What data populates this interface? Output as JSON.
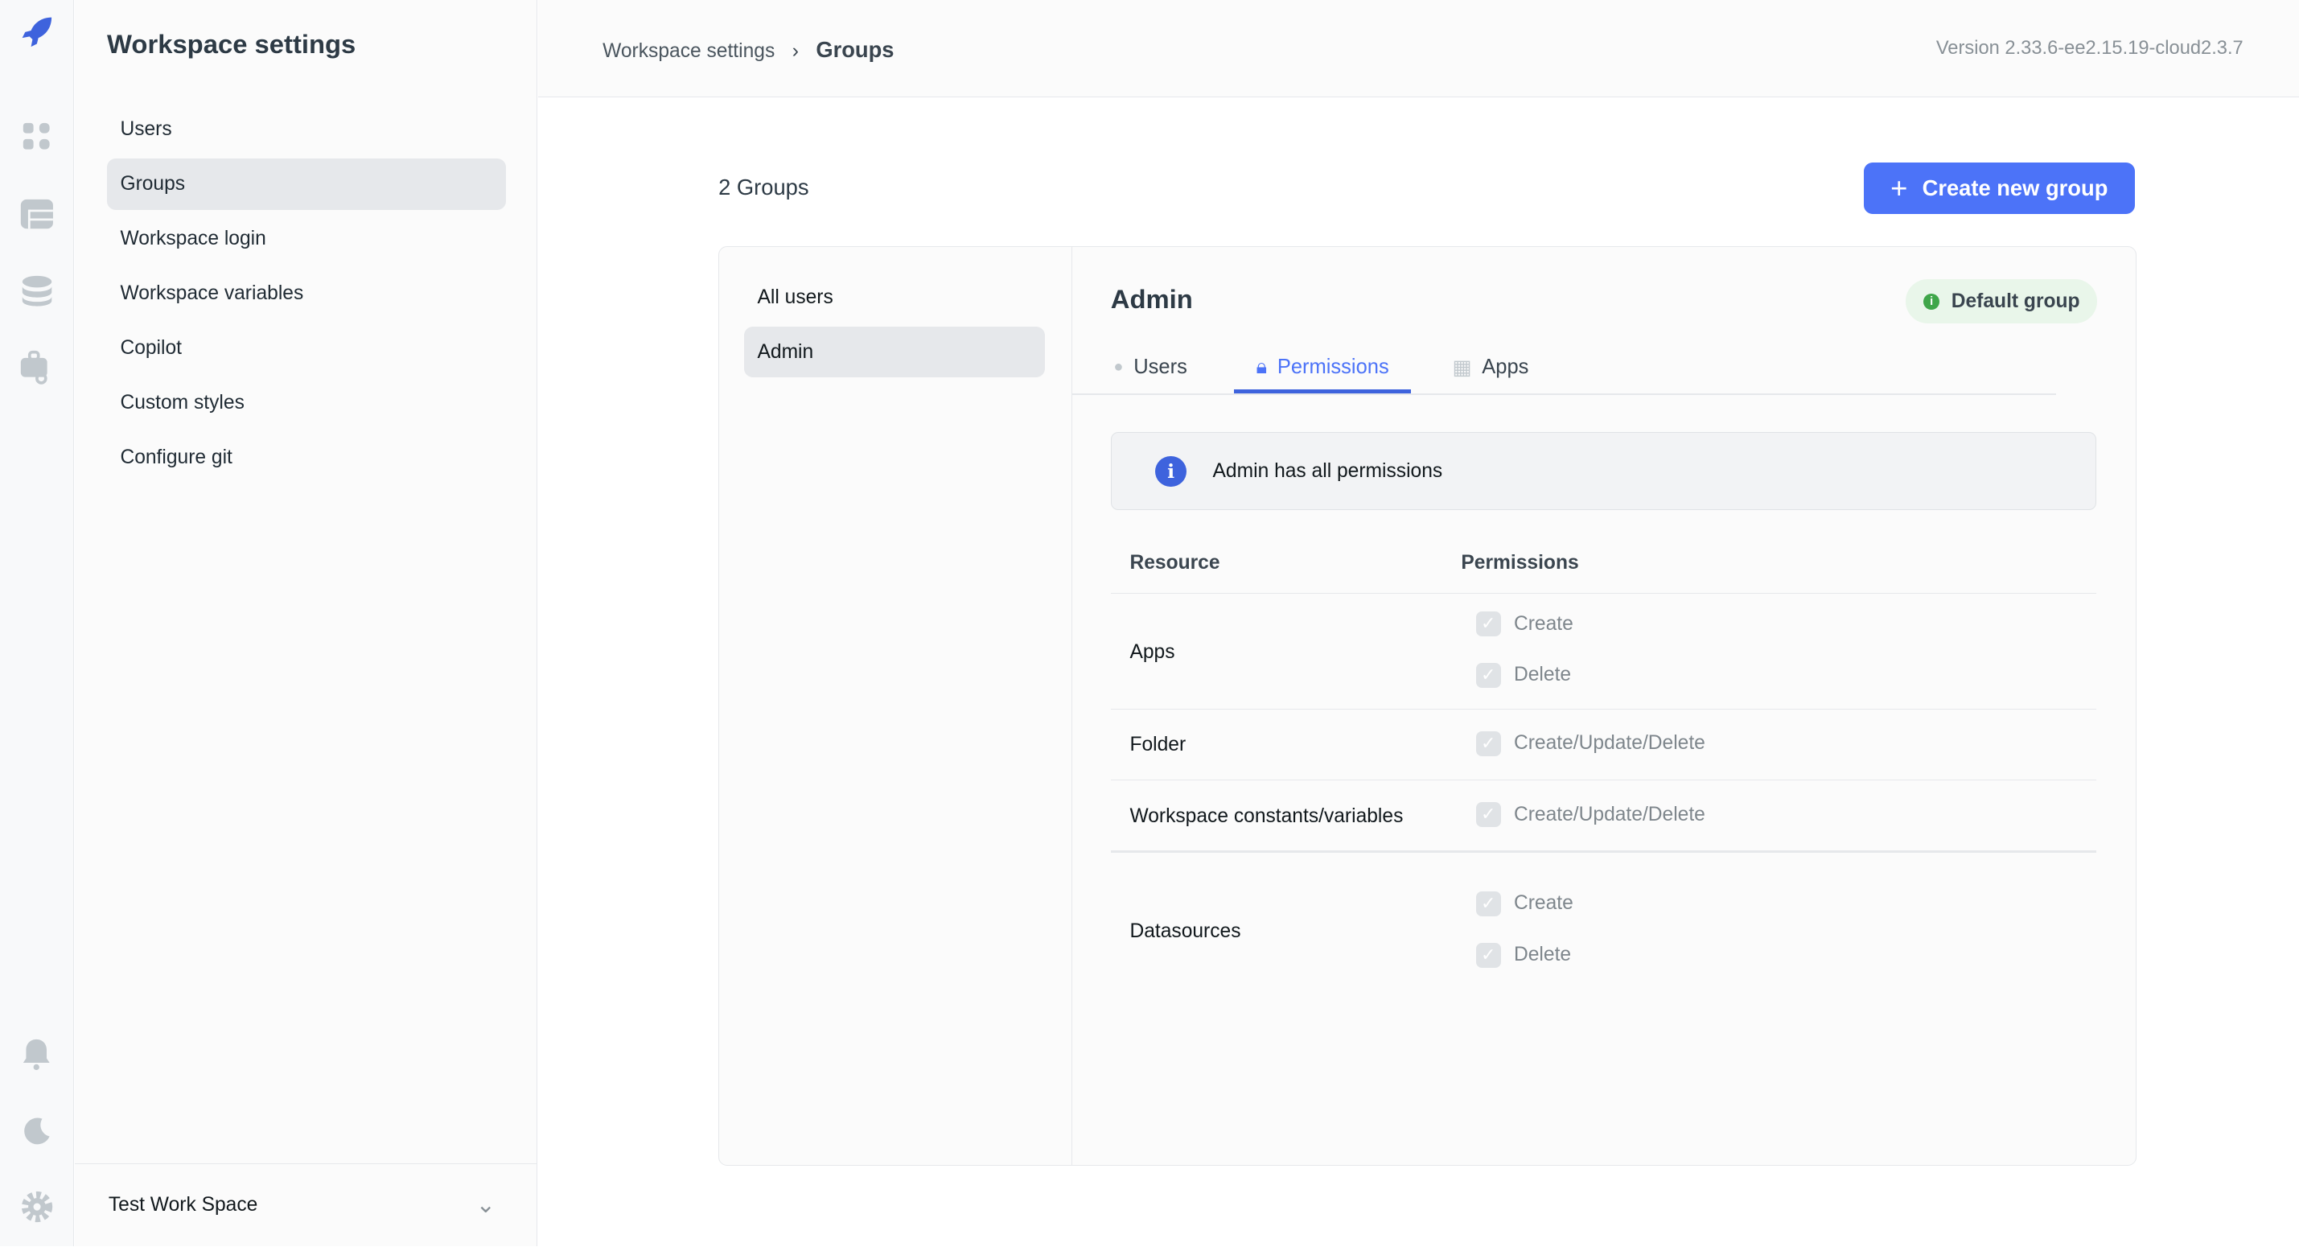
{
  "sidebar": {
    "title": "Workspace settings",
    "items": [
      {
        "label": "Users"
      },
      {
        "label": "Groups",
        "active": true
      },
      {
        "label": "Workspace login"
      },
      {
        "label": "Workspace variables"
      },
      {
        "label": "Copilot"
      },
      {
        "label": "Custom styles"
      },
      {
        "label": "Configure git"
      }
    ],
    "workspace": "Test Work Space"
  },
  "rail": {
    "icons": [
      "rocket-logo",
      "apps-icon",
      "table-icon",
      "database-icon",
      "workflow-key-icon",
      "bell-icon",
      "moon-icon",
      "gear-icon"
    ]
  },
  "header": {
    "breadcrumb": [
      "Workspace settings",
      "Groups"
    ],
    "version": "Version 2.33.6-ee2.15.19-cloud2.3.7"
  },
  "main": {
    "count": "2 Groups",
    "create_label": "Create new group",
    "groups": [
      {
        "label": "All users"
      },
      {
        "label": "Admin",
        "active": true
      }
    ],
    "selected": {
      "name": "Admin",
      "badge": "Default group",
      "tabs": [
        {
          "label": "Users"
        },
        {
          "label": "Permissions",
          "active": true
        },
        {
          "label": "Apps"
        }
      ],
      "info": "Admin has all permissions",
      "columns": [
        "Resource",
        "Permissions"
      ],
      "rows": [
        {
          "resource": "Apps",
          "perms": [
            "Create",
            "Delete"
          ]
        },
        {
          "resource": "Folder",
          "perms": [
            "Create/Update/Delete"
          ]
        },
        {
          "resource": "Workspace constants/variables",
          "perms": [
            "Create/Update/Delete"
          ]
        },
        {
          "resource": "Datasources",
          "perms": [
            "Create",
            "Delete"
          ]
        }
      ]
    }
  },
  "colors": {
    "accent": "#4c73f8",
    "badge_bg": "#e9f6ea",
    "badge_dot": "#3fa64a"
  }
}
